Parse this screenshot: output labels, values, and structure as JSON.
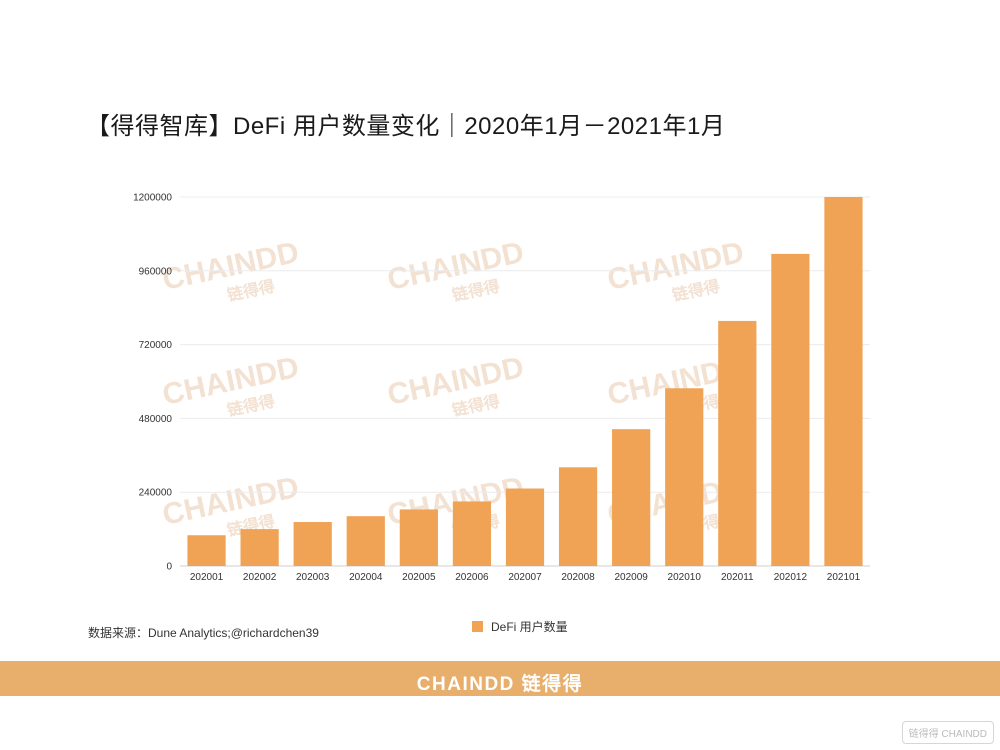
{
  "title": "【得得智库】DeFi 用户数量变化｜2020年1月－2021年1月",
  "source": "数据来源：Dune Analytics;@richardchen39",
  "footer_brand": "CHAINDD 链得得",
  "corner_logo": "链得得 CHAINDD",
  "watermark_text": "CHAINDD",
  "watermark_sub": "链得得",
  "colors": {
    "bar": "#f0a355",
    "footer": "#e8ae6b",
    "grid": "#ececec",
    "watermark": "#f3e1d2"
  },
  "chart_data": {
    "type": "bar",
    "categories": [
      "202001",
      "202002",
      "202003",
      "202004",
      "202005",
      "202006",
      "202007",
      "202008",
      "202009",
      "202010",
      "202011",
      "202012",
      "202101"
    ],
    "series": [
      {
        "name": "DeFi 用户数量",
        "values": [
          100000,
          120000,
          143000,
          162000,
          184000,
          210000,
          252000,
          321000,
          445000,
          578000,
          797000,
          1015000,
          1200000
        ]
      }
    ],
    "yticks": [
      0,
      240000,
      480000,
      720000,
      960000,
      1200000
    ],
    "ylim": [
      0,
      1200000
    ],
    "grid": true,
    "legend": "bottom-center",
    "xlabel": "",
    "ylabel": ""
  }
}
